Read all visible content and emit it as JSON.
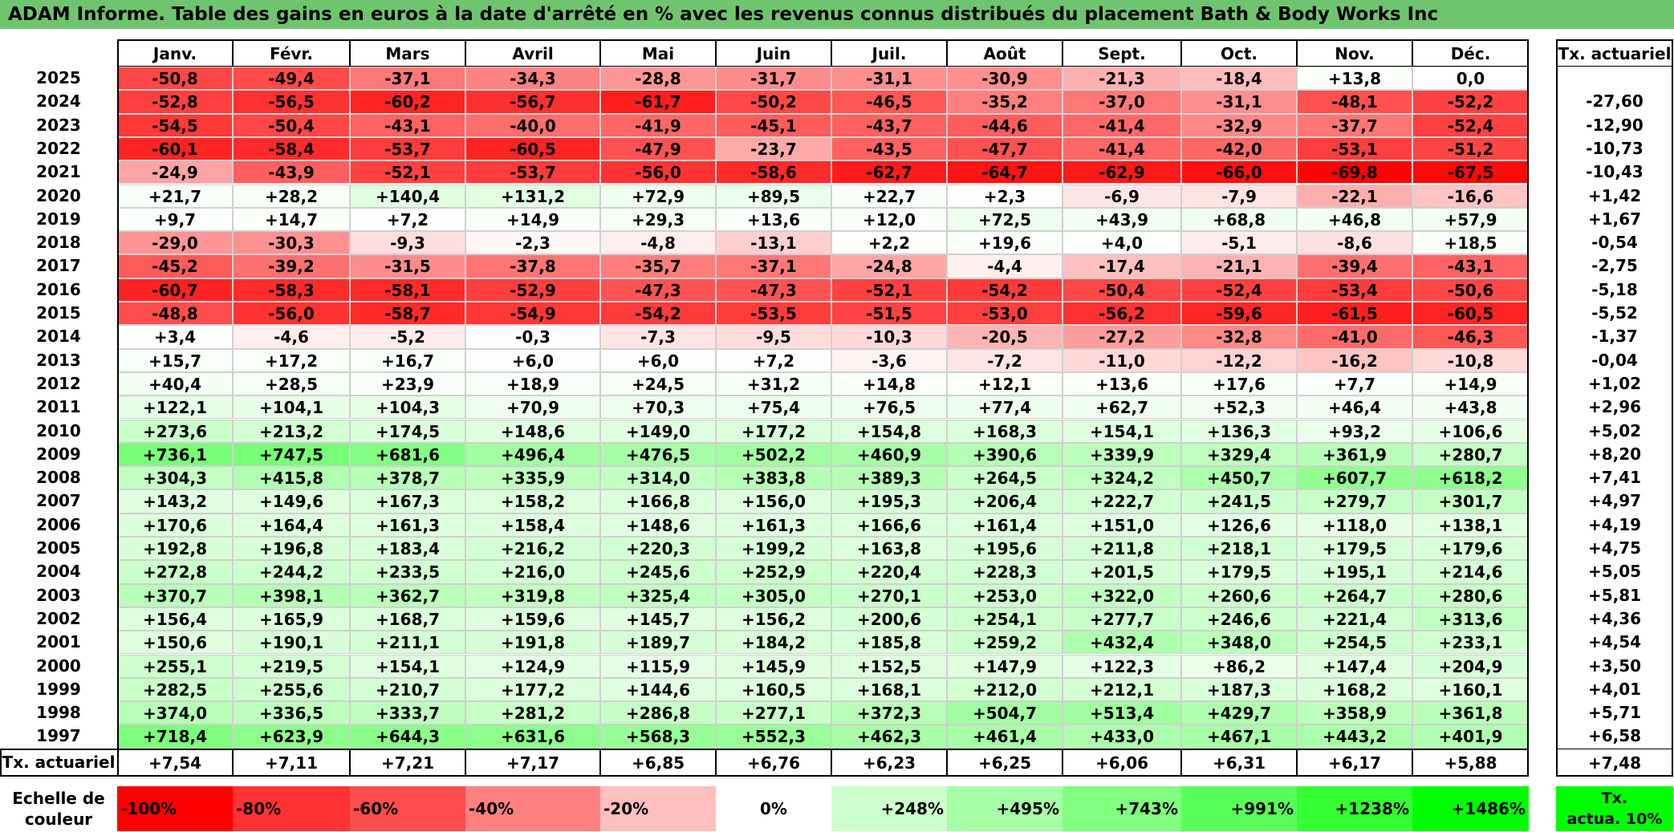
{
  "title": "ADAM Informe. Table des gains en euros à la date d'arrêté en % avec les revenus connus distribués du placement Bath & Body Works Inc",
  "chart_data": {
    "type": "heatmap",
    "title": "ADAM Informe. Table des gains en euros à la date d'arrêté en % avec les revenus connus distribués du placement Bath & Body Works Inc",
    "columns": [
      "Janv.",
      "Févr.",
      "Mars",
      "Avril",
      "Mai",
      "Juin",
      "Juil.",
      "Août",
      "Sept.",
      "Oct.",
      "Nov.",
      "Déc."
    ],
    "rate_header": "Tx. actuariel",
    "footer_label": "Tx. actuariel",
    "rows": [
      {
        "year": "2025",
        "values": [
          "-50,8",
          "-49,4",
          "-37,1",
          "-34,3",
          "-28,8",
          "-31,7",
          "-31,1",
          "-30,9",
          "-21,3",
          "-18,4",
          "+13,8",
          "0,0"
        ],
        "rate": ""
      },
      {
        "year": "2024",
        "values": [
          "-52,8",
          "-56,5",
          "-60,2",
          "-56,7",
          "-61,7",
          "-50,2",
          "-46,5",
          "-35,2",
          "-37,0",
          "-31,1",
          "-48,1",
          "-52,2"
        ],
        "rate": "-27,60"
      },
      {
        "year": "2023",
        "values": [
          "-54,5",
          "-50,4",
          "-43,1",
          "-40,0",
          "-41,9",
          "-45,1",
          "-43,7",
          "-44,6",
          "-41,4",
          "-32,9",
          "-37,7",
          "-52,4"
        ],
        "rate": "-12,90"
      },
      {
        "year": "2022",
        "values": [
          "-60,1",
          "-58,4",
          "-53,7",
          "-60,5",
          "-47,9",
          "-23,7",
          "-43,5",
          "-47,7",
          "-41,4",
          "-42,0",
          "-53,1",
          "-51,2"
        ],
        "rate": "-10,73"
      },
      {
        "year": "2021",
        "values": [
          "-24,9",
          "-43,9",
          "-52,1",
          "-53,7",
          "-56,0",
          "-58,6",
          "-62,7",
          "-64,7",
          "-62,9",
          "-66,0",
          "-69,8",
          "-67,5"
        ],
        "rate": "-10,43"
      },
      {
        "year": "2020",
        "values": [
          "+21,7",
          "+28,2",
          "+140,4",
          "+131,2",
          "+72,9",
          "+89,5",
          "+22,7",
          "+2,3",
          "-6,9",
          "-7,9",
          "-22,1",
          "-16,6"
        ],
        "rate": "+1,42"
      },
      {
        "year": "2019",
        "values": [
          "+9,7",
          "+14,7",
          "+7,2",
          "+14,9",
          "+29,3",
          "+13,6",
          "+12,0",
          "+72,5",
          "+43,9",
          "+68,8",
          "+46,8",
          "+57,9"
        ],
        "rate": "+1,67"
      },
      {
        "year": "2018",
        "values": [
          "-29,0",
          "-30,3",
          "-9,3",
          "-2,3",
          "-4,8",
          "-13,1",
          "+2,2",
          "+19,6",
          "+4,0",
          "-5,1",
          "-8,6",
          "+18,5"
        ],
        "rate": "-0,54"
      },
      {
        "year": "2017",
        "values": [
          "-45,2",
          "-39,2",
          "-31,5",
          "-37,8",
          "-35,7",
          "-37,1",
          "-24,8",
          "-4,4",
          "-17,4",
          "-21,1",
          "-39,4",
          "-43,1"
        ],
        "rate": "-2,75"
      },
      {
        "year": "2016",
        "values": [
          "-60,7",
          "-58,3",
          "-58,1",
          "-52,9",
          "-47,3",
          "-47,3",
          "-52,1",
          "-54,2",
          "-50,4",
          "-52,4",
          "-53,4",
          "-50,6"
        ],
        "rate": "-5,18"
      },
      {
        "year": "2015",
        "values": [
          "-48,8",
          "-56,0",
          "-58,7",
          "-54,9",
          "-54,2",
          "-53,5",
          "-51,5",
          "-53,0",
          "-56,2",
          "-59,6",
          "-61,5",
          "-60,5"
        ],
        "rate": "-5,52"
      },
      {
        "year": "2014",
        "values": [
          "+3,4",
          "-4,6",
          "-5,2",
          "-0,3",
          "-7,3",
          "-9,5",
          "-10,3",
          "-20,5",
          "-27,2",
          "-32,8",
          "-41,0",
          "-46,3"
        ],
        "rate": "-1,37"
      },
      {
        "year": "2013",
        "values": [
          "+15,7",
          "+17,2",
          "+16,7",
          "+6,0",
          "+6,0",
          "+7,2",
          "-3,6",
          "-7,2",
          "-11,0",
          "-12,2",
          "-16,2",
          "-10,8"
        ],
        "rate": "-0,04"
      },
      {
        "year": "2012",
        "values": [
          "+40,4",
          "+28,5",
          "+23,9",
          "+18,9",
          "+24,5",
          "+31,2",
          "+14,8",
          "+12,1",
          "+13,6",
          "+17,6",
          "+7,7",
          "+14,9"
        ],
        "rate": "+1,02"
      },
      {
        "year": "2011",
        "values": [
          "+122,1",
          "+104,1",
          "+104,3",
          "+70,9",
          "+70,3",
          "+75,4",
          "+76,5",
          "+77,4",
          "+62,7",
          "+52,3",
          "+46,4",
          "+43,8"
        ],
        "rate": "+2,96"
      },
      {
        "year": "2010",
        "values": [
          "+273,6",
          "+213,2",
          "+174,5",
          "+148,6",
          "+149,0",
          "+177,2",
          "+154,8",
          "+168,3",
          "+154,1",
          "+136,3",
          "+93,2",
          "+106,6"
        ],
        "rate": "+5,02"
      },
      {
        "year": "2009",
        "values": [
          "+736,1",
          "+747,5",
          "+681,6",
          "+496,4",
          "+476,5",
          "+502,2",
          "+460,9",
          "+390,6",
          "+339,9",
          "+329,4",
          "+361,9",
          "+280,7"
        ],
        "rate": "+8,20"
      },
      {
        "year": "2008",
        "values": [
          "+304,3",
          "+415,8",
          "+378,7",
          "+335,9",
          "+314,0",
          "+383,8",
          "+389,3",
          "+264,5",
          "+324,2",
          "+450,7",
          "+607,7",
          "+618,2"
        ],
        "rate": "+7,41"
      },
      {
        "year": "2007",
        "values": [
          "+143,2",
          "+149,6",
          "+167,3",
          "+158,2",
          "+166,8",
          "+156,0",
          "+195,3",
          "+206,4",
          "+222,7",
          "+241,5",
          "+279,7",
          "+301,7"
        ],
        "rate": "+4,97"
      },
      {
        "year": "2006",
        "values": [
          "+170,6",
          "+164,4",
          "+161,3",
          "+158,4",
          "+148,6",
          "+161,3",
          "+166,6",
          "+161,4",
          "+151,0",
          "+126,6",
          "+118,0",
          "+138,1"
        ],
        "rate": "+4,19"
      },
      {
        "year": "2005",
        "values": [
          "+192,8",
          "+196,8",
          "+183,4",
          "+216,2",
          "+220,3",
          "+199,2",
          "+163,8",
          "+195,6",
          "+211,8",
          "+218,1",
          "+179,5",
          "+179,6"
        ],
        "rate": "+4,75"
      },
      {
        "year": "2004",
        "values": [
          "+272,8",
          "+244,2",
          "+233,5",
          "+216,0",
          "+245,6",
          "+252,9",
          "+220,4",
          "+228,3",
          "+201,5",
          "+179,5",
          "+195,1",
          "+214,6"
        ],
        "rate": "+5,05"
      },
      {
        "year": "2003",
        "values": [
          "+370,7",
          "+398,1",
          "+362,7",
          "+319,8",
          "+325,4",
          "+305,0",
          "+270,1",
          "+253,0",
          "+322,0",
          "+260,6",
          "+264,7",
          "+280,6"
        ],
        "rate": "+5,81"
      },
      {
        "year": "2002",
        "values": [
          "+156,4",
          "+165,9",
          "+168,7",
          "+159,6",
          "+145,7",
          "+156,2",
          "+200,6",
          "+254,1",
          "+277,7",
          "+246,6",
          "+221,4",
          "+313,6"
        ],
        "rate": "+4,36"
      },
      {
        "year": "2001",
        "values": [
          "+150,6",
          "+190,1",
          "+211,1",
          "+191,8",
          "+189,7",
          "+184,2",
          "+185,8",
          "+259,2",
          "+432,4",
          "+348,0",
          "+254,5",
          "+233,1"
        ],
        "rate": "+4,54"
      },
      {
        "year": "2000",
        "values": [
          "+255,1",
          "+219,5",
          "+154,1",
          "+124,9",
          "+115,9",
          "+145,9",
          "+152,5",
          "+147,9",
          "+122,3",
          "+86,2",
          "+147,4",
          "+204,9"
        ],
        "rate": "+3,50"
      },
      {
        "year": "1999",
        "values": [
          "+282,5",
          "+255,6",
          "+210,7",
          "+177,2",
          "+144,6",
          "+160,5",
          "+168,1",
          "+212,0",
          "+212,1",
          "+187,3",
          "+168,2",
          "+160,1"
        ],
        "rate": "+4,01"
      },
      {
        "year": "1998",
        "values": [
          "+374,0",
          "+336,5",
          "+333,7",
          "+281,2",
          "+286,8",
          "+277,1",
          "+372,3",
          "+504,7",
          "+513,4",
          "+429,7",
          "+358,9",
          "+361,8"
        ],
        "rate": "+5,71"
      },
      {
        "year": "1997",
        "values": [
          "+718,4",
          "+623,9",
          "+644,3",
          "+631,6",
          "+568,3",
          "+552,3",
          "+462,3",
          "+461,4",
          "+433,0",
          "+467,1",
          "+443,2",
          "+401,9"
        ],
        "rate": "+6,58"
      }
    ],
    "footer_values": [
      "+7,54",
      "+7,11",
      "+7,21",
      "+7,17",
      "+6,85",
      "+6,76",
      "+6,23",
      "+6,25",
      "+6,06",
      "+6,31",
      "+6,17",
      "+5,88"
    ],
    "footer_rate": "+7,48",
    "scale": {
      "label_line1": "Echelle de",
      "label_line2": "couleur",
      "items": [
        {
          "text": "-100%",
          "color": "#ff0000",
          "align": "left"
        },
        {
          "text": "-80%",
          "color": "#ff3333",
          "align": "left"
        },
        {
          "text": "-60%",
          "color": "#ff4d4d",
          "align": "left"
        },
        {
          "text": "-40%",
          "color": "#ff8080",
          "align": "left"
        },
        {
          "text": "-20%",
          "color": "#ffbfbf",
          "align": "left"
        },
        {
          "text": "0%",
          "color": "#ffffff",
          "align": "center"
        },
        {
          "text": "+248%",
          "color": "#ccffcc",
          "align": "right"
        },
        {
          "text": "+495%",
          "color": "#a6ffa6",
          "align": "right"
        },
        {
          "text": "+743%",
          "color": "#80ff80",
          "align": "right"
        },
        {
          "text": "+991%",
          "color": "#59ff59",
          "align": "right"
        },
        {
          "text": "+1238%",
          "color": "#33ff33",
          "align": "right"
        },
        {
          "text": "+1486%",
          "color": "#00ff00",
          "align": "right"
        }
      ],
      "tx_line1": "Tx.",
      "tx_line2": "actua. 10%",
      "tx_color": "#00ff00"
    },
    "colors": {
      "title_bar": "#6fc56f",
      "negative_max": "#ff0000",
      "positive_max": "#00ff00",
      "neutral": "#ffffff"
    }
  }
}
